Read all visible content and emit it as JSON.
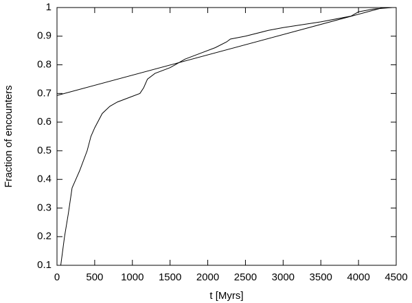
{
  "chart_data": {
    "type": "line",
    "xlabel": "t [Myrs]",
    "ylabel": "Fraction of encounters",
    "xlim": [
      0,
      4500
    ],
    "ylim": [
      0.1,
      1
    ],
    "xticks": [
      0,
      500,
      1000,
      1500,
      2000,
      2500,
      3000,
      3500,
      4000,
      4500
    ],
    "yticks": [
      0.1,
      0.2,
      0.3,
      0.4,
      0.5,
      0.6,
      0.7,
      0.8,
      0.9,
      1
    ],
    "series": [
      {
        "color": "#000000",
        "x": [
          50,
          100,
          150,
          200,
          250,
          300,
          400,
          450,
          500,
          600,
          700,
          800,
          1000,
          1100,
          1150,
          1200,
          1300,
          1500,
          1700,
          1900,
          2100,
          2250,
          2300,
          2500,
          2800,
          3000,
          3500,
          3900,
          4000,
          4200,
          4450
        ],
        "values": [
          0.1,
          0.2,
          0.28,
          0.37,
          0.4,
          0.43,
          0.5,
          0.55,
          0.58,
          0.63,
          0.655,
          0.67,
          0.69,
          0.7,
          0.72,
          0.75,
          0.77,
          0.79,
          0.82,
          0.84,
          0.86,
          0.88,
          0.89,
          0.9,
          0.92,
          0.93,
          0.95,
          0.97,
          0.985,
          0.995,
          1
        ]
      },
      {
        "color": "#000000",
        "x": [
          0,
          4330
        ],
        "values": [
          0.693,
          1
        ]
      }
    ]
  }
}
